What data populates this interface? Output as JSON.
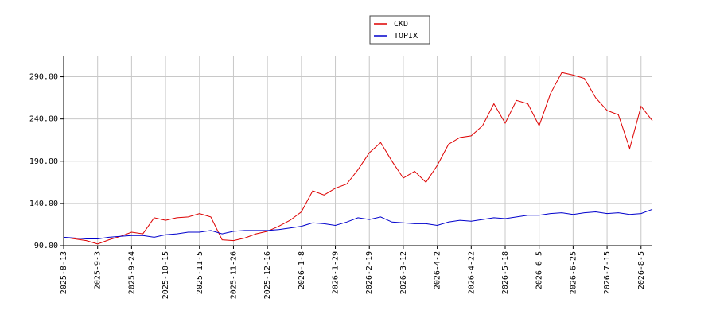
{
  "chart_data": {
    "type": "line",
    "x": [
      "2025-8-13",
      "2025-8-20",
      "2025-8-27",
      "2025-9-3",
      "2025-9-10",
      "2025-9-17",
      "2025-9-24",
      "2025-10-1",
      "2025-10-8",
      "2025-10-15",
      "2025-10-22",
      "2025-10-29",
      "2025-11-5",
      "2025-11-12",
      "2025-11-19",
      "2025-11-26",
      "2025-12-3",
      "2025-12-10",
      "2025-12-16",
      "2025-12-23",
      "2025-12-30",
      "2026-1-8",
      "2026-1-15",
      "2026-1-22",
      "2026-1-29",
      "2026-2-5",
      "2026-2-12",
      "2026-2-19",
      "2026-2-26",
      "2026-3-5",
      "2026-3-12",
      "2026-3-19",
      "2026-3-26",
      "2026-4-2",
      "2026-4-9",
      "2026-4-16",
      "2026-4-22",
      "2026-5-1",
      "2026-5-11",
      "2026-5-18",
      "2026-5-25",
      "2026-5-29",
      "2026-6-5",
      "2026-6-12",
      "2026-6-19",
      "2026-6-25",
      "2026-7-2",
      "2026-7-9",
      "2026-7-15",
      "2026-7-23",
      "2026-7-30",
      "2026-8-5",
      "2026-8-12"
    ],
    "xticks": [
      "2025-8-13",
      "2025-9-3",
      "2025-9-24",
      "2025-10-15",
      "2025-11-5",
      "2025-11-26",
      "2025-12-16",
      "2026-1-8",
      "2026-1-29",
      "2026-2-19",
      "2026-3-12",
      "2026-4-2",
      "2026-4-22",
      "2026-5-18",
      "2026-6-5",
      "2026-6-25",
      "2026-7-15",
      "2026-8-5"
    ],
    "series": [
      {
        "name": "CKD",
        "color": "#dd0000",
        "values": [
          100,
          98,
          96,
          92,
          97,
          101,
          106,
          104,
          123,
          120,
          123,
          124,
          128,
          124,
          97,
          96,
          99,
          104,
          107,
          113,
          120,
          130,
          155,
          150,
          158,
          163,
          180,
          200,
          212,
          190,
          170,
          178,
          165,
          185,
          210,
          218,
          220,
          232,
          258,
          235,
          262,
          258,
          232,
          270,
          295,
          292,
          288,
          265,
          250,
          245,
          205,
          255,
          238
        ]
      },
      {
        "name": "TOPIX",
        "color": "#0000cc",
        "values": [
          100,
          99,
          98,
          98,
          100,
          101,
          102,
          102,
          100,
          103,
          104,
          106,
          106,
          108,
          104,
          107,
          108,
          108,
          108,
          109,
          111,
          113,
          117,
          116,
          114,
          118,
          123,
          121,
          124,
          118,
          117,
          116,
          116,
          114,
          118,
          120,
          119,
          121,
          123,
          122,
          124,
          126,
          126,
          128,
          129,
          127,
          129,
          130,
          128,
          129,
          127,
          128,
          133
        ]
      }
    ],
    "ylim": [
      90,
      315
    ],
    "yticks": [
      {
        "value": 90,
        "label": "90.00"
      },
      {
        "value": 140,
        "label": "140.00"
      },
      {
        "value": 190,
        "label": "190.00"
      },
      {
        "value": 240,
        "label": "240.00"
      },
      {
        "value": 290,
        "label": "290.00"
      }
    ],
    "grid": true
  }
}
